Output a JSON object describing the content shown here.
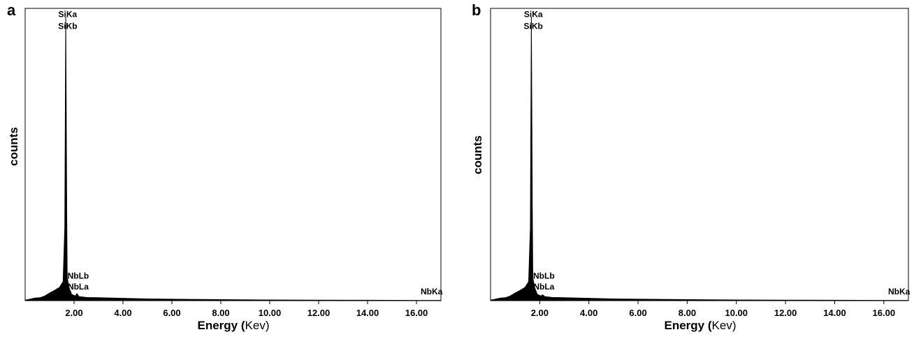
{
  "chart_data": [
    {
      "panel_label": "a",
      "type": "line",
      "xlabel": "Energy",
      "xlabel_unit": "Kev",
      "ylabel": "counts",
      "xlim": [
        0.0,
        17.0
      ],
      "x_ticks": [
        2.0,
        4.0,
        6.0,
        8.0,
        10.0,
        12.0,
        14.0,
        16.0
      ],
      "x_tick_labels": [
        "2.00",
        "4.00",
        "6.00",
        "8.00",
        "10.00",
        "12.00",
        "14.00",
        "16.00"
      ],
      "ylim": [
        0,
        100
      ],
      "grid": false,
      "series": [
        {
          "x": [
            0.0,
            0.2,
            0.4,
            0.6,
            0.8,
            1.0,
            1.2,
            1.4,
            1.55,
            1.62,
            1.66,
            1.7,
            1.72,
            1.78,
            1.9,
            2.05,
            2.12,
            2.2,
            2.5,
            3.0,
            4.0,
            5.0,
            6.0,
            8.0,
            10.0,
            12.0,
            14.0,
            16.0,
            17.0
          ],
          "y": [
            0.2,
            0.5,
            0.9,
            1.0,
            1.6,
            2.6,
            3.5,
            4.5,
            6.5,
            25,
            97,
            30,
            8,
            4.8,
            2.2,
            1.6,
            2.4,
            1.4,
            1.1,
            1.0,
            0.8,
            0.6,
            0.5,
            0.35,
            0.25,
            0.2,
            0.15,
            0.1,
            0.1
          ]
        }
      ],
      "annotations": [
        {
          "text": "SiKa",
          "x": 1.74,
          "y": 97
        },
        {
          "text": "SiKb",
          "x": 1.74,
          "y": 93
        },
        {
          "text": "NbLb",
          "x": 2.17,
          "y": 7.5
        },
        {
          "text": "NbLa",
          "x": 2.17,
          "y": 3.8
        },
        {
          "text": "NbKa",
          "x": 16.62,
          "y": 2.2
        }
      ]
    },
    {
      "panel_label": "b",
      "type": "line",
      "xlabel": "Energy",
      "xlabel_unit": "Kev",
      "ylabel": "counts",
      "xlim": [
        0.0,
        17.0
      ],
      "x_ticks": [
        2.0,
        4.0,
        6.0,
        8.0,
        10.0,
        12.0,
        14.0,
        16.0
      ],
      "x_tick_labels": [
        "2.00",
        "4.00",
        "6.00",
        "8.00",
        "10.00",
        "12.00",
        "14.00",
        "16.00"
      ],
      "ylim": [
        0,
        100
      ],
      "grid": false,
      "series": [
        {
          "x": [
            0.0,
            0.2,
            0.4,
            0.6,
            0.8,
            1.0,
            1.2,
            1.4,
            1.55,
            1.62,
            1.66,
            1.7,
            1.72,
            1.78,
            1.9,
            2.05,
            2.12,
            2.2,
            2.5,
            3.0,
            4.0,
            5.0,
            6.0,
            8.0,
            10.0,
            12.0,
            14.0,
            16.0,
            17.0
          ],
          "y": [
            0.2,
            0.5,
            0.9,
            1.0,
            1.6,
            2.6,
            3.5,
            4.5,
            6.5,
            25,
            97,
            30,
            8,
            4.8,
            2.2,
            1.6,
            2.0,
            1.4,
            1.1,
            1.0,
            0.8,
            0.6,
            0.5,
            0.35,
            0.25,
            0.2,
            0.15,
            0.1,
            0.1
          ]
        }
      ],
      "annotations": [
        {
          "text": "SiKa",
          "x": 1.74,
          "y": 97
        },
        {
          "text": "SiKb",
          "x": 1.74,
          "y": 93
        },
        {
          "text": "NbLb",
          "x": 2.17,
          "y": 7.5
        },
        {
          "text": "NbLa",
          "x": 2.17,
          "y": 3.8
        },
        {
          "text": "NbKa",
          "x": 16.62,
          "y": 2.2
        }
      ]
    }
  ]
}
